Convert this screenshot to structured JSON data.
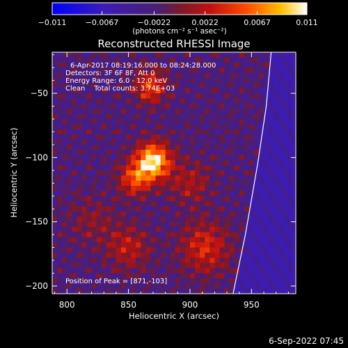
{
  "chart_data": {
    "type": "heatmap",
    "title": "Reconstructed RHESSI Image",
    "xlabel": "Heliocentric X (arcsec)",
    "ylabel": "Heliocentric Y (arcsec)",
    "xlim": [
      788,
      986
    ],
    "ylim": [
      -206,
      -18
    ],
    "x_ticks": [
      800,
      850,
      900,
      950
    ],
    "y_ticks": [
      -50,
      -100,
      -150,
      -200
    ],
    "colorbar": {
      "min": -0.011,
      "max": 0.011,
      "tick_labels": [
        "-0.011",
        "-0.0067",
        "-0.0022",
        "0.0022",
        "0.0067",
        "0.011"
      ],
      "label": "(photons cm⁻² s⁻¹ asec⁻²)"
    },
    "annotations": [
      "6-Apr-2017 08:19:16.000 to 08:24:28.000",
      "Detectors: 3F 6F 8F, Att 0",
      "Energy Range: 6.0 - 12.0 keV",
      "Clean    Total counts: 3.74E+03"
    ],
    "peak": {
      "label": "Position of Peak = [871,-103]",
      "x": 871,
      "y": -103
    },
    "limb_curve": [
      [
        935,
        -206
      ],
      [
        945,
        -160
      ],
      [
        955,
        -105
      ],
      [
        962,
        -60
      ],
      [
        966,
        -18
      ]
    ],
    "sources": [
      {
        "x": 870,
        "y": -103,
        "amp": 1.0,
        "sigma": 10
      },
      {
        "x": 855,
        "y": -117,
        "amp": 0.55,
        "sigma": 9
      },
      {
        "x": 868,
        "y": -45,
        "amp": 0.55,
        "sigma": 9
      },
      {
        "x": 912,
        "y": -170,
        "amp": 0.45,
        "sigma": 14
      },
      {
        "x": 850,
        "y": -170,
        "amp": 0.35,
        "sigma": 12
      },
      {
        "x": 900,
        "y": -120,
        "amp": 0.3,
        "sigma": 12
      },
      {
        "x": 820,
        "y": -150,
        "amp": 0.2,
        "sigma": 14
      }
    ]
  },
  "footer": {
    "date": "6-Sep-2022 07:45"
  }
}
